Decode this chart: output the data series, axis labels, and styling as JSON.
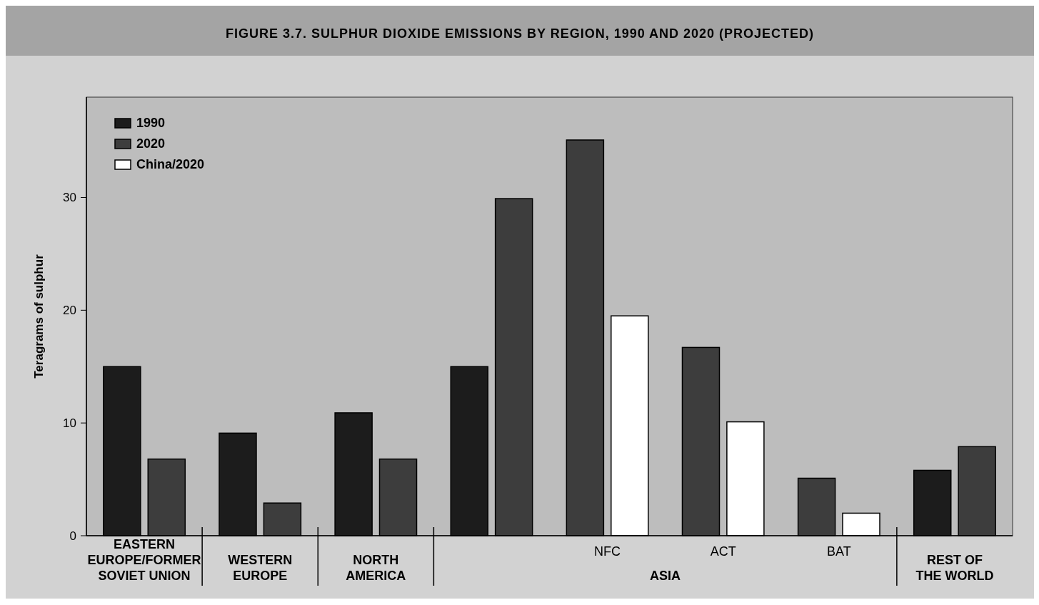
{
  "chart_data": {
    "type": "bar",
    "title": "FIGURE 3.7. SULPHUR DIOXIDE EMISSIONS BY REGION, 1990 AND 2020 (PROJECTED)",
    "ylabel": "Teragrams of sulphur",
    "categories": [
      "EASTERN\nEUROPE/FORMER\nSOVIET UNION",
      "WESTERN\nEUROPE",
      "NORTH\nAMERICA",
      null,
      "NFC",
      "ACT",
      "BAT",
      "REST OF\nTHE WORLD"
    ],
    "annotations": [
      "ASIA"
    ],
    "series": [
      {
        "name": "1990",
        "color": "#1c1c1c",
        "values": [
          15,
          9.1,
          10.9,
          15,
          null,
          null,
          null,
          5.8
        ]
      },
      {
        "name": "2020",
        "color": "#3d3d3d",
        "values": [
          6.8,
          2.9,
          6.8,
          29.9,
          35.1,
          16.7,
          5.1,
          7.9
        ]
      },
      {
        "name": "China/2020",
        "color": "#ffffff",
        "values": [
          null,
          null,
          null,
          null,
          19.5,
          10.1,
          2,
          null
        ]
      }
    ],
    "ylim": [
      0,
      38.9
    ],
    "yticks": [
      0,
      10,
      20,
      30
    ],
    "grid": false,
    "legend": "top left"
  }
}
